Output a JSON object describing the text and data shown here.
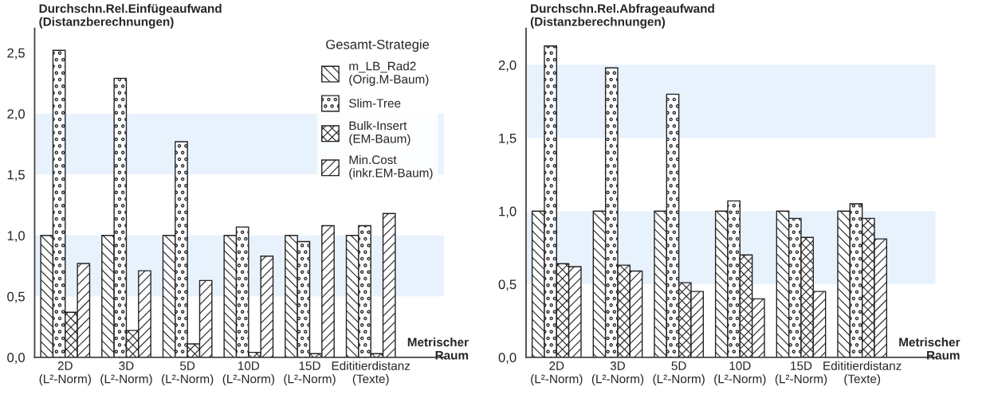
{
  "chart_data": [
    {
      "type": "bar",
      "ylabel": "Durchschn.Rel.Einfügeaufwand\n(Distanzberechnungen)",
      "xlabel": "Metrischer\nRaum",
      "categories": [
        "2D\n(L²-Norm)",
        "3D\n(L²-Norm)",
        "5D\n(L²-Norm)",
        "10D\n(L²-Norm)",
        "15D\n(L²-Norm)",
        "Edititierdistanz\n(Texte)"
      ],
      "series": [
        {
          "name": "m_LB_Rad2\n(Orig.M-Baum)",
          "color": "#222222",
          "values": [
            1.0,
            1.0,
            1.0,
            1.0,
            1.0,
            1.0
          ]
        },
        {
          "name": "Slim-Tree",
          "color": "#222222",
          "values": [
            2.52,
            2.29,
            1.77,
            1.07,
            0.95,
            1.08
          ]
        },
        {
          "name": "Bulk-Insert\n(EM-Baum)",
          "color": "#222222",
          "values": [
            0.37,
            0.22,
            0.11,
            0.04,
            0.03,
            0.03
          ]
        },
        {
          "name": "Min.Cost\n(inkr.EM-Baum)",
          "color": "#222222",
          "values": [
            0.77,
            0.71,
            0.63,
            0.83,
            1.08,
            1.18
          ]
        }
      ],
      "ylim": [
        0,
        2.7
      ],
      "yticks": [
        {
          "value": 0,
          "label": "0,0"
        },
        {
          "value": 0.5,
          "label": "0,5"
        },
        {
          "value": 1.0,
          "label": "1,0"
        },
        {
          "value": 1.5,
          "label": "1,5"
        },
        {
          "value": 2.0,
          "label": "2,0"
        },
        {
          "value": 2.5,
          "label": "2,5"
        }
      ],
      "bands": [
        {
          "axis": "y",
          "from": 0.5,
          "to": 1.0,
          "color": "#e8f2fd"
        },
        {
          "axis": "y",
          "from": 1.5,
          "to": 2.0,
          "color": "#e8f2fd"
        }
      ],
      "legend": "top right",
      "legend_title": "Gesamt-Strategie",
      "grid": false
    },
    {
      "type": "bar",
      "ylabel": "Durchschn.Rel.Abfrageaufwand\n(Distanzberechnungen)",
      "xlabel": "Metrischer\nRaum",
      "categories": [
        "2D\n(L²-Norm)",
        "3D\n(L²-Norm)",
        "5D\n(L²-Norm)",
        "10D\n(L²-Norm)",
        "15D\n(L²-Norm)",
        "Edititierdistanz\n(Texte)"
      ],
      "series": [
        {
          "color": "#222222",
          "values": [
            1.0,
            1.0,
            1.0,
            1.0,
            1.0,
            1.0
          ]
        },
        {
          "color": "#222222",
          "values": [
            2.13,
            1.98,
            1.8,
            1.07,
            0.95,
            1.05
          ]
        },
        {
          "color": "#222222",
          "values": [
            0.64,
            0.63,
            0.51,
            0.7,
            0.82,
            0.95
          ]
        },
        {
          "color": "#222222",
          "values": [
            0.62,
            0.59,
            0.45,
            0.4,
            0.45,
            0.81
          ]
        }
      ],
      "ylim": [
        0,
        2.25
      ],
      "yticks": [
        {
          "value": 0,
          "label": "0,0"
        },
        {
          "value": 0.5,
          "label": "0,5"
        },
        {
          "value": 1.0,
          "label": "1,0"
        },
        {
          "value": 1.5,
          "label": "1,5"
        },
        {
          "value": 2.0,
          "label": "2,0"
        }
      ],
      "bands": [
        {
          "axis": "y",
          "from": 0.5,
          "to": 1.0,
          "color": "#e8f2fd"
        },
        {
          "axis": "y",
          "from": 1.5,
          "to": 2.0,
          "color": "#e8f2fd"
        }
      ],
      "legend": false,
      "grid": false
    }
  ]
}
